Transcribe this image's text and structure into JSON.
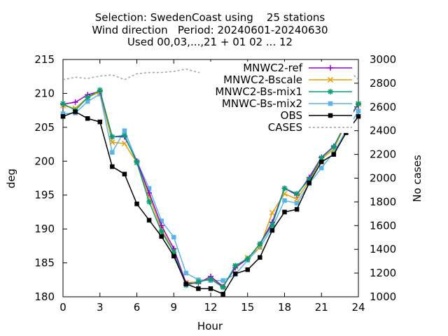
{
  "title_lines": [
    "Selection: SwedenCoast using    25 stations",
    "Wind direction   Period: 20240601-20240630",
    "Used 00,03,...,21 + 01 02 ... 12"
  ],
  "chart_data": {
    "type": "line",
    "xlabel": "Hour",
    "ylabel": "deg",
    "y2label": "No cases",
    "xlim": [
      0,
      24
    ],
    "ylim": [
      180,
      215
    ],
    "y2lim": [
      1000,
      3000
    ],
    "xticks": [
      0,
      3,
      6,
      9,
      12,
      15,
      18,
      21,
      24
    ],
    "yticks": [
      180,
      185,
      190,
      195,
      200,
      205,
      210,
      215
    ],
    "y2ticks": [
      1000,
      1200,
      1400,
      1600,
      1800,
      2000,
      2200,
      2400,
      2600,
      2800,
      3000
    ],
    "grid": false,
    "legend_position": "top-right",
    "x": [
      0,
      1,
      2,
      3,
      4,
      5,
      6,
      7,
      8,
      9,
      10,
      11,
      12,
      13,
      14,
      15,
      16,
      17,
      18,
      19,
      20,
      21,
      22,
      23,
      24
    ],
    "series": [
      {
        "name": "MNWC2-ref",
        "color": "#9400d3",
        "marker": "plus",
        "axis": "y",
        "values": [
          208.4,
          208.7,
          209.8,
          210.3,
          203.6,
          203.6,
          200.0,
          195.3,
          190.5,
          187.1,
          182.0,
          182.0,
          183.0,
          181.5,
          184.3,
          185.6,
          187.8,
          191.0,
          196.0,
          195.0,
          197.6,
          200.6,
          202.2,
          205.6,
          208.4
        ]
      },
      {
        "name": "MNWC2-Bscale",
        "color": "#e69f00",
        "marker": "x",
        "axis": "y",
        "values": [
          208.2,
          207.8,
          209.4,
          210.2,
          202.8,
          202.6,
          199.8,
          194.8,
          190.0,
          186.7,
          182.1,
          182.2,
          182.7,
          181.6,
          184.4,
          185.8,
          187.3,
          192.4,
          195.2,
          194.4,
          197.1,
          200.3,
          201.8,
          205.6,
          208.4
        ]
      },
      {
        "name": "MNWC2-Bs-mix1",
        "color": "#009e73",
        "marker": "star",
        "axis": "y",
        "values": [
          208.5,
          207.5,
          209.4,
          210.5,
          203.6,
          203.8,
          199.8,
          194.0,
          189.6,
          186.6,
          181.7,
          182.2,
          182.6,
          181.4,
          184.6,
          185.6,
          187.8,
          190.6,
          196.0,
          195.2,
          197.3,
          200.5,
          202.1,
          205.8,
          208.5
        ]
      },
      {
        "name": "MNWC-Bs-mix2",
        "color": "#56b4e9",
        "marker": "box",
        "axis": "y",
        "values": [
          207.0,
          207.1,
          208.8,
          209.9,
          201.3,
          204.5,
          200.0,
          196.0,
          191.2,
          188.8,
          183.5,
          182.5,
          182.4,
          182.4,
          183.3,
          185.4,
          187.3,
          190.2,
          194.2,
          193.8,
          196.7,
          199.0,
          201.3,
          204.5,
          207.4
        ]
      },
      {
        "name": "OBS",
        "color": "#000000",
        "marker": "box",
        "axis": "y",
        "values": [
          206.6,
          207.3,
          206.3,
          205.8,
          199.2,
          198.1,
          193.7,
          191.3,
          188.9,
          186.0,
          181.9,
          181.2,
          181.2,
          180.4,
          183.4,
          184.0,
          185.8,
          189.8,
          192.5,
          192.9,
          196.8,
          199.9,
          201.0,
          204.2,
          206.6
        ]
      },
      {
        "name": "CASES",
        "color": "#a0a0a0",
        "marker": "none",
        "dash": true,
        "axis": "y2",
        "values": [
          2830,
          2850,
          2840,
          2860,
          2870,
          2830,
          2880,
          2890,
          2890,
          2900,
          2920,
          2890,
          2910,
          2910,
          2910,
          2920,
          2920,
          2920,
          2930,
          2920,
          2930,
          2930,
          2930,
          2930,
          2830
        ]
      }
    ]
  }
}
